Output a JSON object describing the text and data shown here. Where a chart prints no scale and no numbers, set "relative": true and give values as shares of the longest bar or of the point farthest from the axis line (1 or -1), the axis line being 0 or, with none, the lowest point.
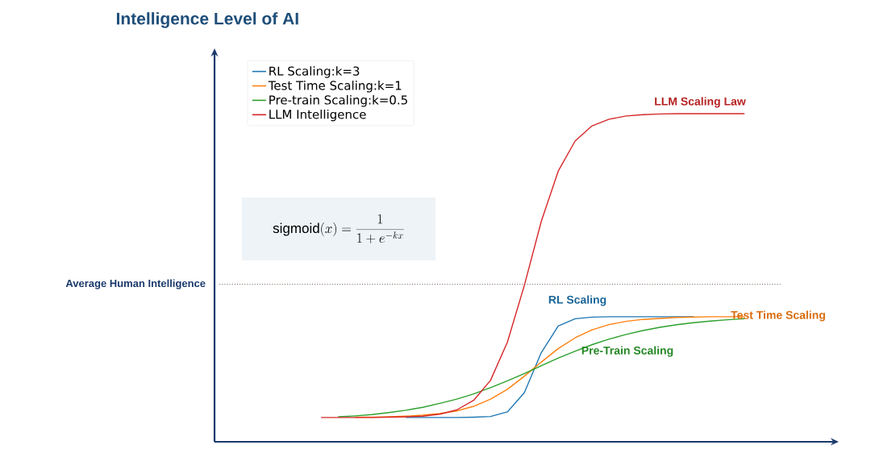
{
  "chart_data": {
    "type": "line",
    "relative": true,
    "title": "Intelligence Level of AI",
    "categories": [
      null,
      null,
      null,
      null,
      null,
      null,
      null,
      null,
      null,
      null,
      null,
      null,
      null,
      null,
      null,
      null,
      null,
      null,
      null,
      null,
      null,
      null,
      null,
      null,
      null,
      null
    ],
    "series": [
      {
        "name": "RL Scaling:k=3",
        "color": "#1f77b4",
        "values": [
          null,
          null,
          null,
          null,
          null,
          0.074,
          0.074,
          0.074,
          0.074,
          0.075,
          0.077,
          0.091,
          0.15,
          0.272,
          0.353,
          0.375,
          0.38,
          0.381,
          0.381,
          0.381,
          0.381,
          0.381,
          0.381,
          null,
          null,
          null
        ]
      },
      {
        "name": "Test Time Scaling:k=1",
        "color": "#ff7f0e",
        "values": [
          null,
          null,
          0.075,
          0.075,
          0.076,
          0.078,
          0.081,
          0.086,
          0.094,
          0.108,
          0.13,
          0.16,
          0.2,
          0.243,
          0.284,
          0.317,
          0.341,
          0.357,
          0.367,
          0.373,
          0.376,
          0.379,
          0.38,
          0.381,
          0.381,
          0.381
        ]
      },
      {
        "name": "Pre-train Scaling:k=0.5",
        "color": "#2ca02c",
        "values": [
          null,
          0.076,
          0.079,
          0.083,
          0.089,
          0.096,
          0.105,
          0.117,
          0.13,
          0.146,
          0.165,
          0.186,
          0.208,
          0.232,
          0.255,
          0.276,
          0.296,
          0.313,
          0.327,
          0.339,
          0.349,
          0.357,
          0.363,
          0.368,
          0.372,
          0.375
        ]
      },
      {
        "name": "LLM Intelligence",
        "color": "#d62728",
        "values": [
          0.074,
          0.074,
          0.074,
          0.074,
          0.075,
          0.076,
          0.078,
          0.084,
          0.097,
          0.126,
          0.187,
          0.304,
          0.477,
          0.672,
          0.825,
          0.917,
          0.963,
          0.983,
          0.993,
          0.997,
          0.999,
          1.0,
          1.0,
          1.0,
          1.0,
          1.0
        ]
      }
    ],
    "legend": "top left",
    "ref_lines": [
      {
        "axis": "y",
        "value": 0.48,
        "label": "Average Human Intelligence",
        "color": "#8a7a70",
        "line_style": "dotted"
      }
    ],
    "annotations": [
      "LLM Scaling Law",
      "RL Scaling",
      "Test Time Scaling",
      "Pre-Train Scaling",
      "\\mathrm{sigmoid}(x) = \\frac{1}{1+e^{-kx}}"
    ]
  }
}
